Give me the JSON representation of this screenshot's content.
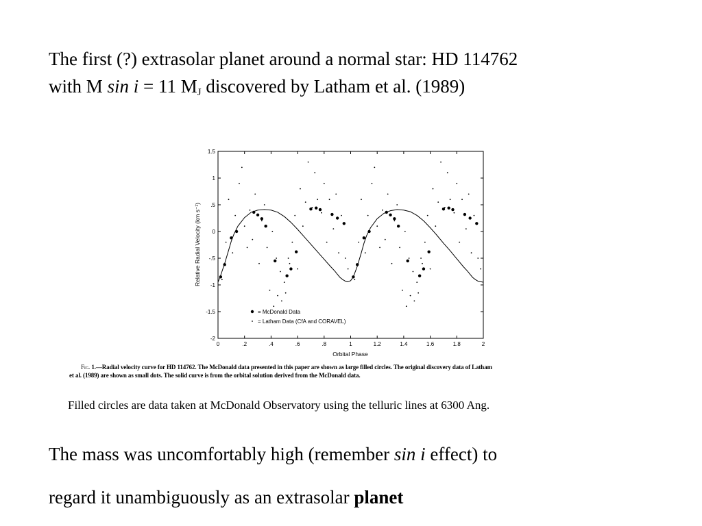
{
  "slide": {
    "title_line1": "The first (?) extrasolar planet around a normal star: HD 114762",
    "title_line2_a": "with M ",
    "title_line2_sin": "sin i",
    "title_line2_b": " = 11 M",
    "title_line2_sub": "J",
    "title_line2_c": " discovered by Latham et al. (1989)"
  },
  "figure": {
    "caption_fig": "Fig.",
    "caption_line1": " 1.—Radial velocity curve for HD 114762. The McDonald data presented in this paper are shown as large filled circles. The original discovery data of Latham",
    "caption_line2": "et al. (1989) are shown as small dots. The solid curve is from the orbital solution derived from the McDonald data."
  },
  "note": "Filled circles are data taken at McDonald Observatory using the telluric lines at 6300 Ang.",
  "body": {
    "line1_a": "The mass was uncomfortably high (remember ",
    "line1_sin": "sin i",
    "line1_b": " effect) to",
    "line2_a": "regard it unambiguously as an extrasolar ",
    "line2_bold": "planet"
  },
  "chart_data": {
    "type": "scatter",
    "xlabel": "Orbital Phase",
    "ylabel": "Relative Radial Velocity  (km s⁻¹)",
    "xlim": [
      0,
      2
    ],
    "ylim": [
      -2,
      1.5
    ],
    "x_ticks": [
      0,
      0.2,
      0.4,
      0.6,
      0.8,
      1,
      1.2,
      1.4,
      1.6,
      1.8,
      2
    ],
    "x_tick_labels": [
      "0",
      ".2",
      ".4",
      ".6",
      ".8",
      "1",
      "1.2",
      "1.4",
      "1.6",
      "1.8",
      "2"
    ],
    "y_ticks": [
      1.5,
      1,
      0.5,
      0,
      -0.5,
      -1,
      -1.5,
      -2
    ],
    "y_tick_labels": [
      "1.5",
      "1",
      ".5",
      "0",
      "-.5",
      "-1",
      "-1.5",
      "-2"
    ],
    "legend": [
      {
        "marker": "large-dot",
        "label": "= McDonald Data"
      },
      {
        "marker": "small-dot",
        "label": "= Latham Data (CfA and CORAVEL)"
      }
    ],
    "legend_position": "lower-left",
    "grid": false,
    "series": [
      {
        "name": "McDonald Data",
        "marker": "large-dot",
        "x": [
          0.02,
          0.05,
          0.1,
          0.14,
          0.27,
          0.3,
          0.33,
          0.36,
          0.43,
          0.52,
          0.55,
          0.59,
          0.7,
          0.74,
          0.77,
          0.86,
          0.9,
          0.95,
          1.02,
          1.05,
          1.1,
          1.14,
          1.27,
          1.3,
          1.33,
          1.36,
          1.43,
          1.52,
          1.55,
          1.59,
          1.7,
          1.74,
          1.77,
          1.86,
          1.9,
          1.95
        ],
        "y": [
          -0.85,
          -0.62,
          -0.12,
          0.0,
          0.36,
          0.31,
          0.24,
          0.1,
          -0.55,
          -0.83,
          -0.7,
          -0.38,
          0.42,
          0.44,
          0.41,
          0.32,
          0.25,
          0.15,
          -0.85,
          -0.62,
          -0.12,
          0.0,
          0.36,
          0.31,
          0.24,
          0.1,
          -0.55,
          -0.83,
          -0.7,
          -0.38,
          0.42,
          0.44,
          0.41,
          0.32,
          0.25,
          0.15
        ]
      },
      {
        "name": "Latham Data (CfA and CORAVEL)",
        "marker": "small-dot",
        "x": [
          0.03,
          0.06,
          0.08,
          0.11,
          0.13,
          0.16,
          0.18,
          0.2,
          0.22,
          0.24,
          0.26,
          0.28,
          0.31,
          0.33,
          0.35,
          0.37,
          0.39,
          0.41,
          0.42,
          0.44,
          0.45,
          0.47,
          0.48,
          0.5,
          0.51,
          0.53,
          0.54,
          0.56,
          0.58,
          0.6,
          0.62,
          0.64,
          0.66,
          0.68,
          0.71,
          0.73,
          0.75,
          0.78,
          0.8,
          0.82,
          0.84,
          0.87,
          0.89,
          0.91,
          0.93,
          0.96,
          0.98,
          1.03,
          1.06,
          1.08,
          1.11,
          1.13,
          1.16,
          1.18,
          1.2,
          1.22,
          1.24,
          1.26,
          1.28,
          1.31,
          1.33,
          1.35,
          1.37,
          1.39,
          1.41,
          1.42,
          1.44,
          1.45,
          1.47,
          1.48,
          1.5,
          1.51,
          1.53,
          1.54,
          1.56,
          1.58,
          1.6,
          1.62,
          1.64,
          1.66,
          1.68,
          1.71,
          1.73,
          1.75,
          1.78,
          1.8,
          1.82,
          1.84,
          1.87,
          1.89,
          1.91,
          1.93,
          1.96,
          1.98
        ],
        "y": [
          -0.9,
          -0.2,
          0.6,
          -0.4,
          0.3,
          0.9,
          1.2,
          0.1,
          -0.3,
          0.4,
          -0.15,
          0.7,
          -0.6,
          0.2,
          0.5,
          -0.3,
          -1.1,
          0.0,
          -1.4,
          -0.5,
          -1.2,
          -0.75,
          -1.3,
          -0.95,
          -1.15,
          -0.5,
          -0.6,
          -0.2,
          0.3,
          -0.7,
          0.8,
          0.1,
          0.55,
          1.3,
          0.45,
          1.1,
          0.6,
          0.35,
          0.9,
          -0.2,
          0.6,
          0.05,
          0.7,
          -0.4,
          0.3,
          -0.5,
          -0.7,
          -0.9,
          -0.2,
          0.6,
          -0.4,
          0.3,
          0.9,
          1.2,
          0.1,
          -0.3,
          0.4,
          -0.15,
          0.7,
          -0.6,
          0.2,
          0.5,
          -0.3,
          -1.1,
          0.0,
          -1.4,
          -0.5,
          -1.2,
          -0.75,
          -1.3,
          -0.95,
          -1.15,
          -0.5,
          -0.6,
          -0.2,
          0.3,
          -0.7,
          0.8,
          0.1,
          0.55,
          1.3,
          0.45,
          1.1,
          0.6,
          0.35,
          0.9,
          -0.2,
          0.6,
          0.05,
          0.7,
          -0.4,
          0.3,
          -0.5,
          -0.7
        ]
      },
      {
        "name": "",
        "marker": "line",
        "x": [
          0,
          0.02,
          0.05,
          0.08,
          0.1,
          0.12,
          0.15,
          0.2,
          0.25,
          0.3,
          0.35,
          0.4,
          0.45,
          0.5,
          0.55,
          0.6,
          0.65,
          0.7,
          0.75,
          0.8,
          0.85,
          0.88,
          0.9,
          0.92,
          0.94,
          0.96,
          0.98,
          1,
          1.02,
          1.05,
          1.08,
          1.1,
          1.12,
          1.15,
          1.2,
          1.25,
          1.3,
          1.35,
          1.4,
          1.45,
          1.5,
          1.55,
          1.6,
          1.65,
          1.7,
          1.75,
          1.8,
          1.85,
          1.88,
          1.9,
          1.92,
          1.94,
          1.96,
          1.98,
          2
        ],
        "y": [
          -0.95,
          -0.82,
          -0.6,
          -0.35,
          -0.18,
          -0.05,
          0.1,
          0.26,
          0.36,
          0.4,
          0.41,
          0.4,
          0.36,
          0.28,
          0.17,
          0.04,
          -0.1,
          -0.24,
          -0.38,
          -0.52,
          -0.66,
          -0.74,
          -0.8,
          -0.86,
          -0.9,
          -0.93,
          -0.94,
          -0.92,
          -0.85,
          -0.65,
          -0.4,
          -0.22,
          -0.08,
          0.07,
          0.24,
          0.34,
          0.39,
          0.41,
          0.4,
          0.37,
          0.3,
          0.2,
          0.07,
          -0.07,
          -0.22,
          -0.36,
          -0.51,
          -0.66,
          -0.74,
          -0.8,
          -0.86,
          -0.9,
          -0.93,
          -0.94,
          -0.95
        ]
      }
    ]
  }
}
